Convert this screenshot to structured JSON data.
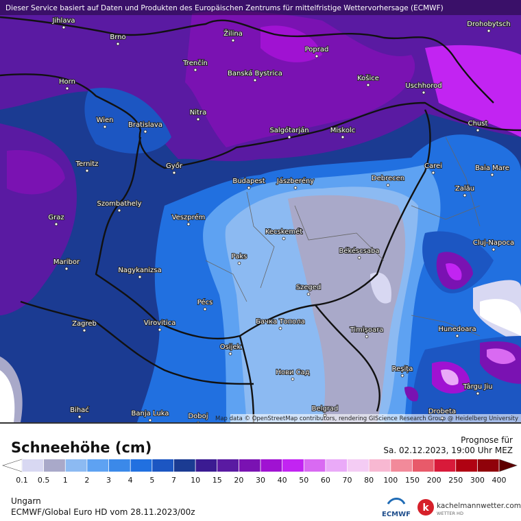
{
  "header": {
    "notice": "Dieser Service basiert auf Daten und Produkten des Europäischen Zentrums für mittelfristige Wettervorhersage (ECMWF)"
  },
  "map": {
    "attribution": "Map data © OpenStreetMap contributors, rendering GIScience Research Group @ Heidelberg University",
    "cities": [
      "Jihlava",
      "Brno",
      "Žilina",
      "Poprad",
      "Drohobytsch",
      "Trenčín",
      "Banská Bystrica",
      "Košice",
      "Uschhorod",
      "Horn",
      "Wien",
      "Bratislava",
      "Nitra",
      "Salgótarján",
      "Miskolc",
      "Chust",
      "Ternitz",
      "Győr",
      "Budapest",
      "Jászberény",
      "Debrecen",
      "Carei",
      "Baia Mare",
      "Szombathely",
      "Zalău",
      "Graz",
      "Veszprém",
      "Kecskemét",
      "Cluj-Napoca",
      "Paks",
      "Békéscsaba",
      "Maribor",
      "Nagykanizsa",
      "Szeged",
      "Pécs",
      "Zagreb",
      "Virovitica",
      "Бачка Топола",
      "Timișoara",
      "Hunedoara",
      "Osijek",
      "Reșița",
      "Нови Сад",
      "Târgu Jiu",
      "Belgrad",
      "Bihać",
      "Banja Luka",
      "Doboj",
      "Drobeta"
    ]
  },
  "legend": {
    "title": "Schneehöhe (cm)",
    "ticks": [
      0.1,
      0.5,
      1,
      2,
      3,
      4,
      5,
      7,
      10,
      15,
      20,
      30,
      40,
      50,
      60,
      70,
      80,
      100,
      150,
      200,
      250,
      300,
      400
    ],
    "colors": [
      "#d8d8f2",
      "#a9a9c9",
      "#8cbaf2",
      "#5ea2f2",
      "#3b89e9",
      "#2170e0",
      "#1c56c2",
      "#1b3b92",
      "#3b1b92",
      "#5a1aa2",
      "#7a12b2",
      "#a012d2",
      "#c224f2",
      "#d96af2",
      "#eaaaf8",
      "#f4ccf4",
      "#f8b8d2",
      "#f28a9a",
      "#e85a6a",
      "#d81a3a",
      "#b00212",
      "#90020a"
    ],
    "under_color": "#ffffff",
    "over_color": "#5e0000"
  },
  "forecast": {
    "label": "Prognose für",
    "valid_time": "Sa. 02.12.2023, 19:00 Uhr MEZ"
  },
  "footer": {
    "region": "Ungarn",
    "model_run": "ECMWF/Global Euro HD vom  28.11.2023/00z"
  },
  "logos": {
    "ecmwf": "ECMWF",
    "site": "kachelmannwetter.com",
    "site_sub": "WETTER HD"
  }
}
